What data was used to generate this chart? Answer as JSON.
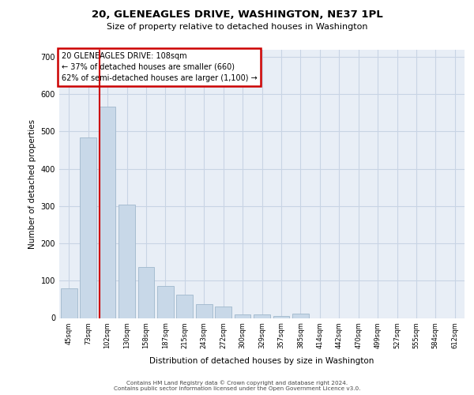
{
  "title1": "20, GLENEAGLES DRIVE, WASHINGTON, NE37 1PL",
  "title2": "Size of property relative to detached houses in Washington",
  "xlabel": "Distribution of detached houses by size in Washington",
  "ylabel": "Number of detached properties",
  "categories": [
    "45sqm",
    "73sqm",
    "102sqm",
    "130sqm",
    "158sqm",
    "187sqm",
    "215sqm",
    "243sqm",
    "272sqm",
    "300sqm",
    "329sqm",
    "357sqm",
    "385sqm",
    "414sqm",
    "442sqm",
    "470sqm",
    "499sqm",
    "527sqm",
    "555sqm",
    "584sqm",
    "612sqm"
  ],
  "values": [
    80,
    484,
    567,
    303,
    136,
    85,
    63,
    37,
    30,
    10,
    10,
    6,
    11,
    0,
    0,
    0,
    0,
    0,
    0,
    0,
    0
  ],
  "bar_color": "#c8d8e8",
  "bar_edge_color": "#a0b8cc",
  "redline_color": "#cc0000",
  "annotation_text": "20 GLENEAGLES DRIVE: 108sqm\n← 37% of detached houses are smaller (660)\n62% of semi-detached houses are larger (1,100) →",
  "annotation_box_bg": "#ffffff",
  "annotation_box_edge": "#cc0000",
  "grid_color": "#c8d4e4",
  "bg_color": "#e8eef6",
  "footer1": "Contains HM Land Registry data © Crown copyright and database right 2024.",
  "footer2": "Contains public sector information licensed under the Open Government Licence v3.0.",
  "ylim": [
    0,
    720
  ],
  "yticks": [
    0,
    100,
    200,
    300,
    400,
    500,
    600,
    700
  ],
  "redline_bar_index": 1.57
}
